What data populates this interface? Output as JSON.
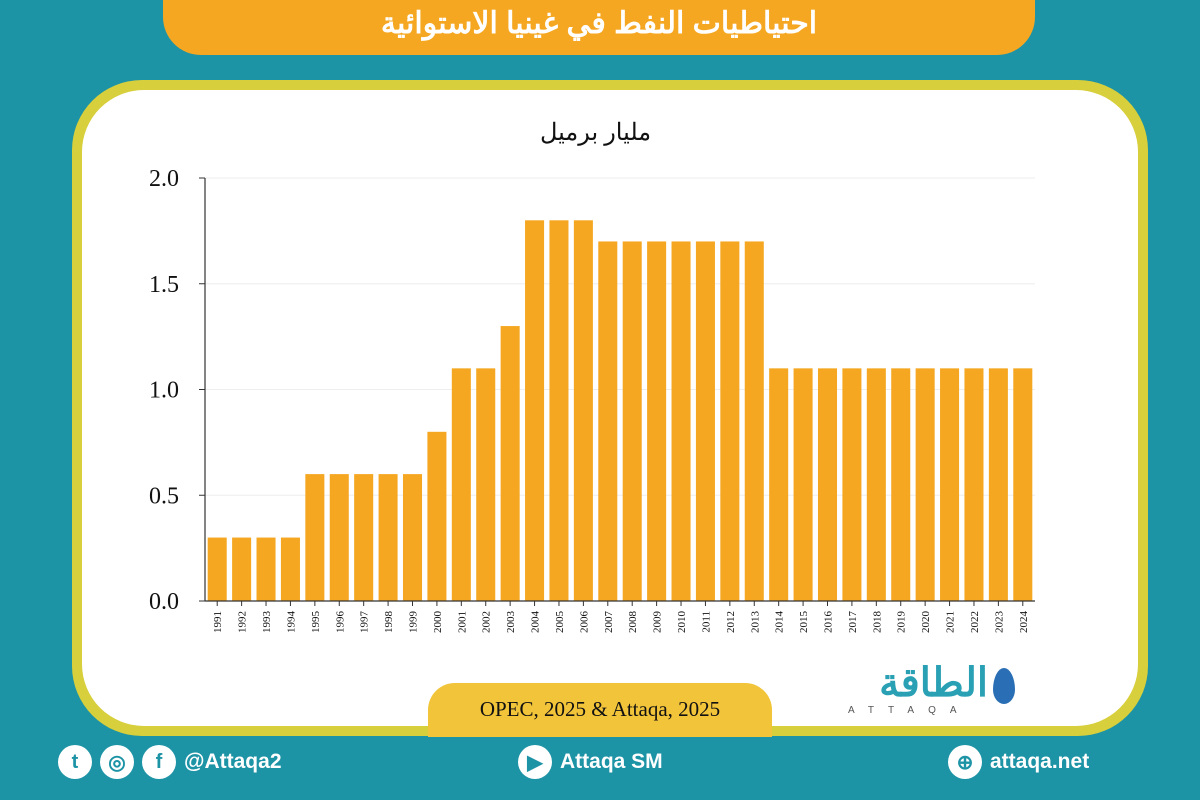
{
  "title": "احتياطيات النفط في غينيا الاستوائية",
  "source": "OPEC, 2025 & Attaqa, 2025",
  "logo": {
    "arabic": "الطاقة",
    "latin": "ATTAQA"
  },
  "footer": {
    "twitter_handle": "@Attaqa2",
    "youtube": "Attaqa SM",
    "website": "attaqa.net"
  },
  "colors": {
    "background": "#1d93a6",
    "bar": "#f5a722",
    "title_bg": "#f5a722"
  },
  "chart_data": {
    "type": "bar",
    "title": "",
    "ylabel": "مليار برميل",
    "xlabel": "",
    "ylim": [
      0,
      2.0
    ],
    "yticks": [
      "0.0",
      "0.5",
      "1.0",
      "1.5",
      "2.0"
    ],
    "categories": [
      "1991",
      "1992",
      "1993",
      "1994",
      "1995",
      "1996",
      "1997",
      "1998",
      "1999",
      "2000",
      "2001",
      "2002",
      "2003",
      "2004",
      "2005",
      "2006",
      "2007",
      "2008",
      "2009",
      "2010",
      "2011",
      "2012",
      "2013",
      "2014",
      "2015",
      "2016",
      "2017",
      "2018",
      "2019",
      "2020",
      "2021",
      "2022",
      "2023",
      "2024"
    ],
    "values": [
      0.3,
      0.3,
      0.3,
      0.3,
      0.6,
      0.6,
      0.6,
      0.6,
      0.6,
      0.8,
      1.1,
      1.1,
      1.3,
      1.8,
      1.8,
      1.8,
      1.7,
      1.7,
      1.7,
      1.7,
      1.7,
      1.7,
      1.7,
      1.1,
      1.1,
      1.1,
      1.1,
      1.1,
      1.1,
      1.1,
      1.1,
      1.1,
      1.1,
      1.1
    ],
    "grid": true
  }
}
